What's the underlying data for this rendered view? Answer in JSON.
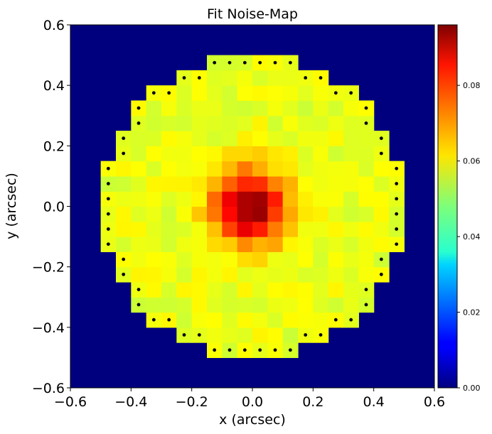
{
  "chart_data": {
    "type": "heatmap",
    "title": "Fit Noise-Map",
    "xlabel": "x (arcsec)",
    "ylabel": "y (arcsec)",
    "xlim": [
      -0.6,
      0.6
    ],
    "ylim": [
      -0.6,
      0.6
    ],
    "x_ticks": [
      -0.6,
      -0.4,
      -0.2,
      0.0,
      0.2,
      0.4,
      0.6
    ],
    "y_ticks": [
      -0.6,
      -0.4,
      -0.2,
      0.0,
      0.2,
      0.4,
      0.6
    ],
    "x_tick_labels": [
      "−0.6",
      "−0.4",
      "−0.2",
      "0.0",
      "0.2",
      "0.4",
      "0.6"
    ],
    "y_tick_labels": [
      "−0.6",
      "−0.4",
      "−0.2",
      "0.0",
      "0.2",
      "0.4",
      "0.6"
    ],
    "pixel_size_arcsec": 0.05,
    "colormap": "jet",
    "background_color": "#00007f",
    "colorbar": {
      "min": 0.0,
      "max": 0.096,
      "ticks": [
        0.0,
        0.02,
        0.04,
        0.06,
        0.08
      ],
      "tick_labels": [
        "0.00",
        "0.02",
        "0.04",
        "0.06",
        "0.08"
      ]
    },
    "mask_radius_arcsec": 0.5,
    "border_marker_color": "#000000"
  }
}
